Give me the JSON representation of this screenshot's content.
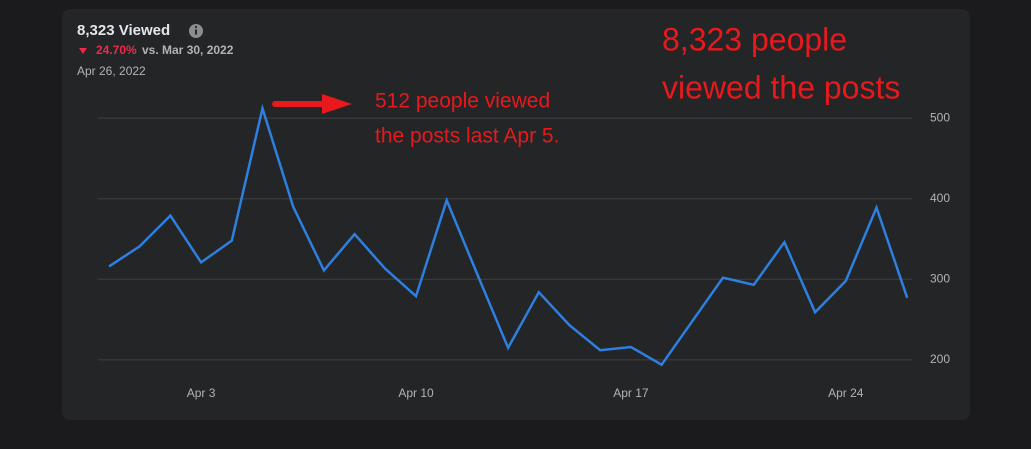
{
  "chart_data": {
    "type": "line",
    "title": "8,323 Viewed",
    "change": "24.70%",
    "comparison": "vs. Mar 30, 2022",
    "date": "Apr 26, 2022",
    "annotations": [
      {
        "lines": [
          "512 people viewed",
          "the posts last Apr 5."
        ]
      },
      {
        "lines": [
          "8,323 people",
          "viewed the posts"
        ]
      }
    ],
    "categories": [
      null,
      null,
      null,
      "Apr 3",
      null,
      null,
      null,
      null,
      null,
      null,
      "Apr 10",
      null,
      null,
      null,
      null,
      null,
      null,
      "Apr 17",
      null,
      null,
      null,
      null,
      null,
      null,
      "Apr 24",
      null,
      null
    ],
    "values": [
      316,
      341,
      379,
      321,
      348,
      512,
      390,
      311,
      356,
      313,
      279,
      398,
      306,
      215,
      284,
      243,
      212,
      216,
      194,
      248,
      302,
      293,
      346,
      259,
      298,
      389,
      277
    ],
    "color": "#2d7fe0",
    "ylim": [
      180,
      520
    ],
    "yticks": [
      200,
      300,
      400,
      500
    ],
    "grid": true
  }
}
